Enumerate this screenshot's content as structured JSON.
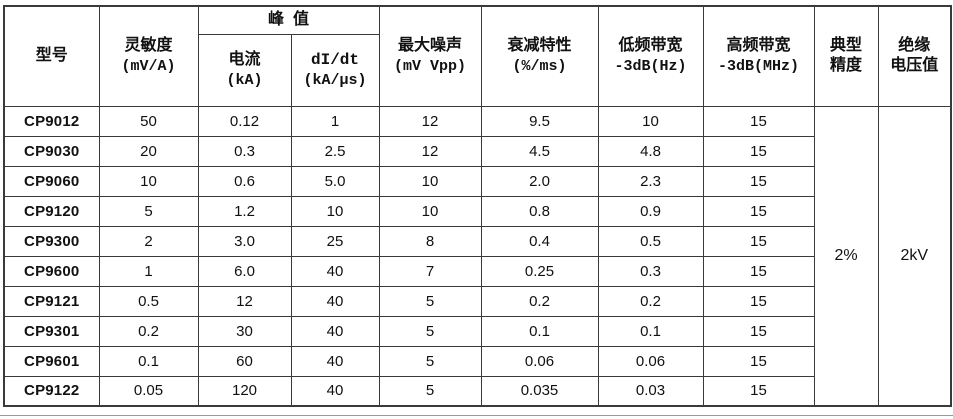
{
  "colors": {
    "border": "#3a3a3a",
    "text": "#111111",
    "background": "#ffffff"
  },
  "table": {
    "header": {
      "model": "型号",
      "sensitivity": {
        "line1": "灵敏度",
        "line2": "(mV/A)"
      },
      "peak": "峰  值",
      "peak_current": {
        "line1": "电流",
        "line2": "(kA)"
      },
      "peak_didt": {
        "line1": "dI/dt",
        "line2": "(kA/μs)"
      },
      "max_noise": {
        "line1": "最大噪声",
        "line2": "(mV Vpp)"
      },
      "attenuation": {
        "line1": "衰减特性",
        "line2": "(%/ms)"
      },
      "low_bandwidth": {
        "line1": "低频带宽",
        "line2": "-3dB(Hz)"
      },
      "high_bandwidth": {
        "line1": "高频带宽",
        "line2": "-3dB(MHz)"
      },
      "typical_accuracy": {
        "line1": "典型",
        "line2": "精度"
      },
      "insulation_voltage": {
        "line1": "绝缘",
        "line2": "电压值"
      }
    },
    "rows": [
      {
        "model": "CP9012",
        "values": [
          "50",
          "0.12",
          "1",
          "12",
          "9.5",
          "10",
          "15"
        ]
      },
      {
        "model": "CP9030",
        "values": [
          "20",
          "0.3",
          "2.5",
          "12",
          "4.5",
          "4.8",
          "15"
        ]
      },
      {
        "model": "CP9060",
        "values": [
          "10",
          "0.6",
          "5.0",
          "10",
          "2.0",
          "2.3",
          "15"
        ]
      },
      {
        "model": "CP9120",
        "values": [
          "5",
          "1.2",
          "10",
          "10",
          "0.8",
          "0.9",
          "15"
        ]
      },
      {
        "model": "CP9300",
        "values": [
          "2",
          "3.0",
          "25",
          "8",
          "0.4",
          "0.5",
          "15"
        ]
      },
      {
        "model": "CP9600",
        "values": [
          "1",
          "6.0",
          "40",
          "7",
          "0.25",
          "0.3",
          "15"
        ]
      },
      {
        "model": "CP9121",
        "values": [
          "0.5",
          "12",
          "40",
          "5",
          "0.2",
          "0.2",
          "15"
        ]
      },
      {
        "model": "CP9301",
        "values": [
          "0.2",
          "30",
          "40",
          "5",
          "0.1",
          "0.1",
          "15"
        ]
      },
      {
        "model": "CP9601",
        "values": [
          "0.1",
          "60",
          "40",
          "5",
          "0.06",
          "0.06",
          "15"
        ]
      },
      {
        "model": "CP9122",
        "values": [
          "0.05",
          "120",
          "40",
          "5",
          "0.035",
          "0.03",
          "15"
        ]
      }
    ],
    "merged": {
      "typical_accuracy": "2%",
      "insulation_voltage": "2kV"
    }
  }
}
